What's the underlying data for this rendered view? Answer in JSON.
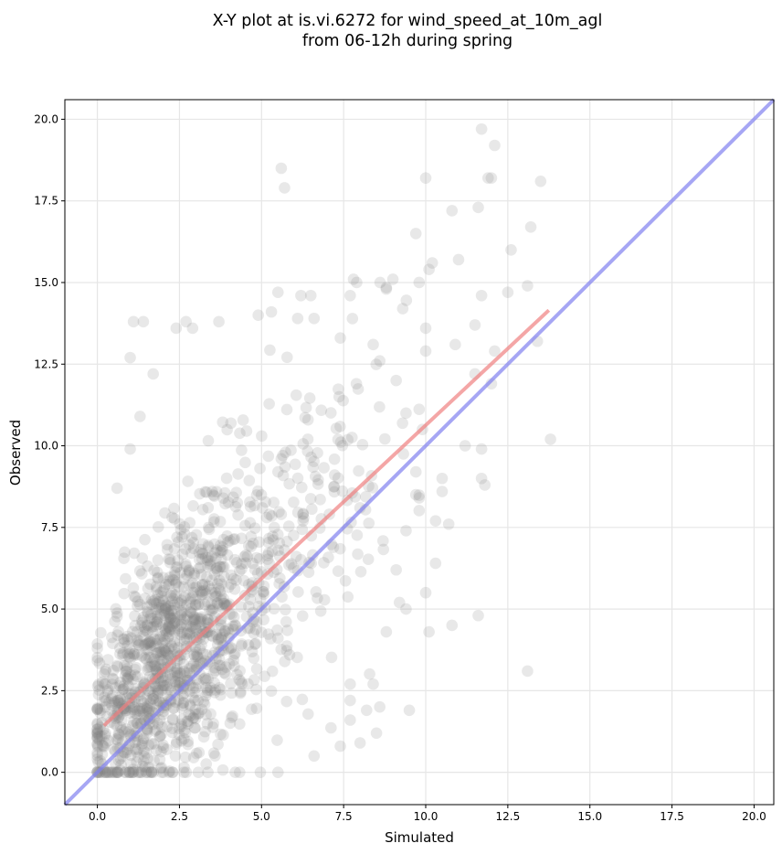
{
  "chart_data": {
    "type": "scatter",
    "title_line1": "X-Y plot at is.vi.6272 for wind_speed_at_10m_agl",
    "title_line2": "from 06-12h during spring",
    "xlabel": "Simulated",
    "ylabel": "Observed",
    "xlim": [
      -0.99,
      20.6
    ],
    "ylim": [
      -0.99,
      20.6
    ],
    "grid": true,
    "ticks": [
      0.0,
      2.5,
      5.0,
      7.5,
      10.0,
      12.5,
      15.0,
      17.5,
      20.0
    ],
    "tick_labels": [
      "0.0",
      "2.5",
      "5.0",
      "7.5",
      "10.0",
      "12.5",
      "15.0",
      "17.5",
      "20.0"
    ],
    "lines": [
      {
        "label": "regression",
        "color": "#f08080",
        "x": [
          0.2,
          13.75
        ],
        "y": [
          1.43,
          14.15
        ]
      },
      {
        "label": "one-to-one",
        "color": "#8080f0",
        "x": [
          -0.99,
          20.6
        ],
        "y": [
          -0.99,
          20.6
        ]
      }
    ],
    "marker_color": "#808080",
    "points_outliers": [
      [
        5.6,
        18.5
      ],
      [
        5.7,
        17.9
      ],
      [
        11.7,
        19.7
      ],
      [
        12.1,
        19.2
      ],
      [
        11.9,
        18.2
      ],
      [
        12.0,
        18.2
      ],
      [
        10.0,
        18.2
      ],
      [
        13.5,
        18.1
      ],
      [
        11.6,
        17.3
      ],
      [
        10.8,
        17.2
      ],
      [
        13.2,
        16.7
      ],
      [
        12.6,
        16.0
      ],
      [
        9.7,
        16.5
      ],
      [
        10.2,
        15.6
      ],
      [
        10.1,
        15.4
      ],
      [
        11.0,
        15.7
      ],
      [
        7.8,
        15.1
      ],
      [
        9.0,
        15.1
      ],
      [
        11.7,
        14.6
      ],
      [
        12.5,
        14.7
      ],
      [
        13.1,
        14.9
      ],
      [
        5.5,
        14.7
      ],
      [
        6.2,
        14.6
      ],
      [
        6.5,
        14.6
      ],
      [
        7.7,
        14.6
      ],
      [
        8.8,
        14.8
      ],
      [
        2.9,
        13.6
      ],
      [
        2.7,
        13.8
      ],
      [
        3.7,
        13.8
      ],
      [
        1.1,
        13.8
      ],
      [
        1.4,
        13.8
      ],
      [
        2.4,
        13.6
      ],
      [
        4.9,
        14.0
      ],
      [
        5.3,
        14.1
      ],
      [
        9.3,
        14.2
      ],
      [
        13.4,
        13.2
      ],
      [
        12.1,
        12.9
      ],
      [
        11.5,
        13.7
      ],
      [
        10.9,
        13.1
      ],
      [
        11.5,
        12.2
      ],
      [
        12.0,
        11.9
      ],
      [
        10.0,
        13.6
      ],
      [
        10.0,
        12.9
      ],
      [
        13.8,
        10.2
      ],
      [
        11.7,
        9.9
      ],
      [
        11.7,
        9.0
      ],
      [
        11.8,
        8.8
      ],
      [
        11.2,
        10.0
      ],
      [
        10.5,
        9.0
      ],
      [
        10.5,
        8.6
      ],
      [
        10.3,
        7.7
      ],
      [
        10.7,
        7.6
      ],
      [
        10.3,
        6.4
      ],
      [
        9.1,
        6.2
      ],
      [
        9.2,
        5.2
      ],
      [
        10.0,
        5.5
      ],
      [
        10.1,
        4.3
      ],
      [
        10.8,
        4.5
      ],
      [
        11.6,
        4.8
      ],
      [
        13.1,
        3.1
      ],
      [
        9.5,
        1.9
      ],
      [
        8.5,
        1.2
      ],
      [
        8.0,
        0.9
      ],
      [
        7.4,
        0.8
      ],
      [
        6.6,
        0.5
      ],
      [
        5.5,
        0.0
      ],
      [
        4.2,
        0.0
      ],
      [
        0.6,
        8.7
      ],
      [
        1.0,
        12.7
      ],
      [
        1.7,
        12.2
      ],
      [
        1.0,
        9.9
      ],
      [
        1.3,
        10.9
      ],
      [
        7.7,
        2.7
      ],
      [
        7.7,
        2.2
      ],
      [
        7.7,
        1.6
      ],
      [
        8.2,
        1.9
      ],
      [
        8.6,
        2.0
      ],
      [
        8.4,
        2.7
      ],
      [
        8.8,
        4.3
      ],
      [
        9.4,
        5.0
      ],
      [
        9.4,
        7.4
      ],
      [
        9.7,
        8.5
      ],
      [
        9.7,
        9.2
      ],
      [
        9.9,
        10.5
      ],
      [
        9.4,
        11.0
      ],
      [
        9.1,
        12.0
      ],
      [
        8.6,
        12.6
      ],
      [
        8.4,
        13.1
      ],
      [
        7.4,
        13.3
      ],
      [
        6.6,
        13.9
      ],
      [
        6.1,
        13.9
      ]
    ],
    "cloud_params": {
      "n": 1350,
      "seed": 6272,
      "x_mean": 3.9,
      "x_sd": 2.4,
      "x_min": 0.0,
      "x_max": 9.8,
      "slope": 0.94,
      "intercept": 1.43,
      "noise_sd": 2.15,
      "y_min": 0.0,
      "y_max": 15.0
    }
  }
}
